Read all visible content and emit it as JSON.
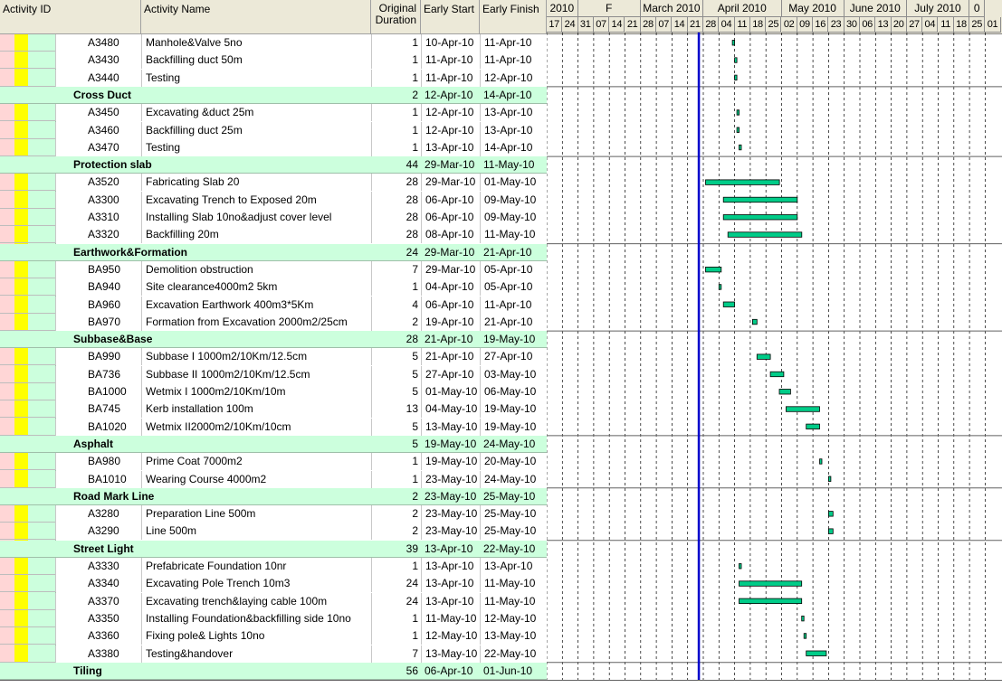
{
  "header": {
    "activity_id": "Activity ID",
    "activity_name": "Activity Name",
    "duration_line1": "Original",
    "duration_line2": "Duration",
    "early_start": "Early Start",
    "early_finish": "Early Finish"
  },
  "timescale": {
    "months": [
      {
        "label": "2010",
        "start": 0,
        "span": 2
      },
      {
        "label": "F",
        "start": 2,
        "span": 4
      },
      {
        "label": "March 2010",
        "start": 6,
        "span": 4
      },
      {
        "label": "April 2010",
        "start": 10,
        "span": 5
      },
      {
        "label": "May 2010",
        "start": 15,
        "span": 4
      },
      {
        "label": "June 2010",
        "start": 19,
        "span": 4
      },
      {
        "label": "July 2010",
        "start": 23,
        "span": 4
      },
      {
        "label": "0",
        "start": 27,
        "span": 1
      }
    ],
    "days": [
      "17",
      "24",
      "31",
      "07",
      "14",
      "21",
      "28",
      "07",
      "14",
      "21",
      "28",
      "04",
      "11",
      "18",
      "25",
      "02",
      "09",
      "16",
      "23",
      "30",
      "06",
      "13",
      "20",
      "27",
      "04",
      "11",
      "18",
      "25",
      "01"
    ],
    "data_date": "2010-03-26",
    "timeline_start": "2010-01-17",
    "column_days": 7
  },
  "colors": {
    "group_band": "#ccffdd",
    "bar": "#00cc88",
    "data_date_line": "#0000cc",
    "left_band_pink": "#ffd6d6",
    "left_band_yellow": "#ffff00",
    "left_band_green": "#ccffdd"
  },
  "rows": [
    {
      "type": "task",
      "id": "A3480",
      "name": "Manhole&Valve 5no",
      "dur": "1",
      "es": "10-Apr-10",
      "ef": "11-Apr-10"
    },
    {
      "type": "task",
      "id": "A3430",
      "name": "Backfilling duct 50m",
      "dur": "1",
      "es": "11-Apr-10",
      "ef": "11-Apr-10"
    },
    {
      "type": "task",
      "id": "A3440",
      "name": "Testing",
      "dur": "1",
      "es": "11-Apr-10",
      "ef": "12-Apr-10"
    },
    {
      "type": "group",
      "name": "Cross Duct",
      "dur": "2",
      "es": "12-Apr-10",
      "ef": "14-Apr-10"
    },
    {
      "type": "task",
      "id": "A3450",
      "name": "Excavating &duct 25m",
      "dur": "1",
      "es": "12-Apr-10",
      "ef": "13-Apr-10"
    },
    {
      "type": "task",
      "id": "A3460",
      "name": "Backfilling duct 25m",
      "dur": "1",
      "es": "12-Apr-10",
      "ef": "13-Apr-10"
    },
    {
      "type": "task",
      "id": "A3470",
      "name": "Testing",
      "dur": "1",
      "es": "13-Apr-10",
      "ef": "14-Apr-10"
    },
    {
      "type": "group",
      "name": "Protection slab",
      "dur": "44",
      "es": "29-Mar-10",
      "ef": "11-May-10"
    },
    {
      "type": "task",
      "id": "A3520",
      "name": "Fabricating Slab 20",
      "dur": "28",
      "es": "29-Mar-10",
      "ef": "01-May-10"
    },
    {
      "type": "task",
      "id": "A3300",
      "name": "Excavating Trench to Exposed 20m",
      "dur": "28",
      "es": "06-Apr-10",
      "ef": "09-May-10"
    },
    {
      "type": "task",
      "id": "A3310",
      "name": "Installing Slab 10no&adjust cover level",
      "dur": "28",
      "es": "06-Apr-10",
      "ef": "09-May-10"
    },
    {
      "type": "task",
      "id": "A3320",
      "name": "Backfilling 20m",
      "dur": "28",
      "es": "08-Apr-10",
      "ef": "11-May-10"
    },
    {
      "type": "group",
      "name": "Earthwork&Formation",
      "dur": "24",
      "es": "29-Mar-10",
      "ef": "21-Apr-10"
    },
    {
      "type": "task",
      "id": "BA950",
      "name": "Demolition obstruction",
      "dur": "7",
      "es": "29-Mar-10",
      "ef": "05-Apr-10"
    },
    {
      "type": "task",
      "id": "BA940",
      "name": "Site clearance4000m2 5km",
      "dur": "1",
      "es": "04-Apr-10",
      "ef": "05-Apr-10"
    },
    {
      "type": "task",
      "id": "BA960",
      "name": "Excavation Earthwork 400m3*5Km",
      "dur": "4",
      "es": "06-Apr-10",
      "ef": "11-Apr-10"
    },
    {
      "type": "task",
      "id": "BA970",
      "name": "Formation from Excavation 2000m2/25cm",
      "dur": "2",
      "es": "19-Apr-10",
      "ef": "21-Apr-10"
    },
    {
      "type": "group",
      "name": "Subbase&Base",
      "dur": "28",
      "es": "21-Apr-10",
      "ef": "19-May-10"
    },
    {
      "type": "task",
      "id": "BA990",
      "name": "Subbase I 1000m2/10Km/12.5cm",
      "dur": "5",
      "es": "21-Apr-10",
      "ef": "27-Apr-10"
    },
    {
      "type": "task",
      "id": "BA736",
      "name": "Subbase II 1000m2/10Km/12.5cm",
      "dur": "5",
      "es": "27-Apr-10",
      "ef": "03-May-10"
    },
    {
      "type": "task",
      "id": "BA1000",
      "name": "Wetmix I 1000m2/10Km/10m",
      "dur": "5",
      "es": "01-May-10",
      "ef": "06-May-10"
    },
    {
      "type": "task",
      "id": "BA745",
      "name": "Kerb installation 100m",
      "dur": "13",
      "es": "04-May-10",
      "ef": "19-May-10"
    },
    {
      "type": "task",
      "id": "BA1020",
      "name": "Wetmix II2000m2/10Km/10cm",
      "dur": "5",
      "es": "13-May-10",
      "ef": "19-May-10"
    },
    {
      "type": "group",
      "name": "Asphalt",
      "dur": "5",
      "es": "19-May-10",
      "ef": "24-May-10"
    },
    {
      "type": "task",
      "id": "BA980",
      "name": "Prime Coat 7000m2",
      "dur": "1",
      "es": "19-May-10",
      "ef": "20-May-10"
    },
    {
      "type": "task",
      "id": "BA1010",
      "name": "Wearing Course 4000m2",
      "dur": "1",
      "es": "23-May-10",
      "ef": "24-May-10"
    },
    {
      "type": "group",
      "name": "Road Mark Line",
      "dur": "2",
      "es": "23-May-10",
      "ef": "25-May-10"
    },
    {
      "type": "task",
      "id": "A3280",
      "name": "Preparation Line 500m",
      "dur": "2",
      "es": "23-May-10",
      "ef": "25-May-10"
    },
    {
      "type": "task",
      "id": "A3290",
      "name": "Line 500m",
      "dur": "2",
      "es": "23-May-10",
      "ef": "25-May-10"
    },
    {
      "type": "group",
      "name": "Street Light",
      "dur": "39",
      "es": "13-Apr-10",
      "ef": "22-May-10"
    },
    {
      "type": "task",
      "id": "A3330",
      "name": "Prefabricate Foundation 10nr",
      "dur": "1",
      "es": "13-Apr-10",
      "ef": "13-Apr-10"
    },
    {
      "type": "task",
      "id": "A3340",
      "name": "Excavating Pole Trench  10m3",
      "dur": "24",
      "es": "13-Apr-10",
      "ef": "11-May-10"
    },
    {
      "type": "task",
      "id": "A3370",
      "name": "Excavating trench&laying cable 100m",
      "dur": "24",
      "es": "13-Apr-10",
      "ef": "11-May-10"
    },
    {
      "type": "task",
      "id": "A3350",
      "name": "Installing Foundation&backfilling side 10no",
      "dur": "1",
      "es": "11-May-10",
      "ef": "12-May-10"
    },
    {
      "type": "task",
      "id": "A3360",
      "name": "Fixing pole& Lights 10no",
      "dur": "1",
      "es": "12-May-10",
      "ef": "13-May-10"
    },
    {
      "type": "task",
      "id": "A3380",
      "name": "Testing&handover",
      "dur": "7",
      "es": "13-May-10",
      "ef": "22-May-10"
    },
    {
      "type": "group",
      "name": "Tiling",
      "dur": "56",
      "es": "06-Apr-10",
      "ef": "01-Jun-10"
    }
  ]
}
